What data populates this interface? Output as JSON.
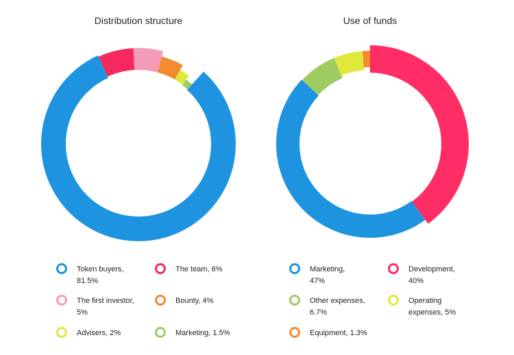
{
  "chart_data": [
    {
      "type": "pie",
      "title": "Distribution structure",
      "series": [
        {
          "name": "Token buyers",
          "value": 81.5,
          "color": "#1E94E0",
          "legend": "Token buyers, 81.5%"
        },
        {
          "name": "The team",
          "value": 6,
          "color": "#F5295F",
          "legend": "The team, 6%"
        },
        {
          "name": "The first investor",
          "value": 5,
          "color": "#F39CB8",
          "legend": "The first investor, 5%"
        },
        {
          "name": "Bounty",
          "value": 4,
          "color": "#F28A2E",
          "legend": "Bounty, 4%"
        },
        {
          "name": "Advisers",
          "value": 2,
          "color": "#E0E83C",
          "legend": "Advisers, 2%"
        },
        {
          "name": "Marketing",
          "value": 1.5,
          "color": "#9ECB62",
          "legend": "Marketing, 1.5%"
        }
      ]
    },
    {
      "type": "pie",
      "title": "Use of funds",
      "series": [
        {
          "name": "Development",
          "value": 40,
          "color": "#FF2D63",
          "legend": "Development, 40%"
        },
        {
          "name": "Marketing",
          "value": 47,
          "color": "#1E94E0",
          "legend": "Marketing, 47%"
        },
        {
          "name": "Other expenses",
          "value": 6.7,
          "color": "#9ECB62",
          "legend": "Other expenses, 6.7%"
        },
        {
          "name": "Operating expenses",
          "value": 5,
          "color": "#E0E83C",
          "legend": "Operating expenses, 5%"
        },
        {
          "name": "Equipment",
          "value": 1.3,
          "color": "#F28A2E",
          "legend": "Equipment, 1.3%"
        }
      ]
    }
  ]
}
